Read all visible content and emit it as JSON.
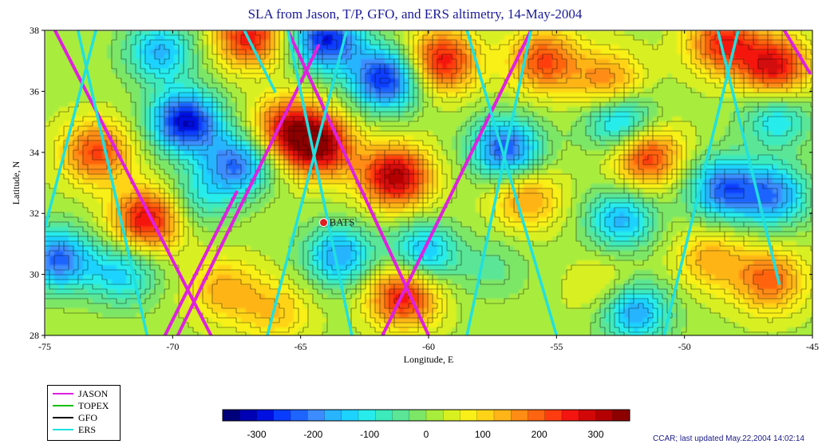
{
  "title": "SLA from Jason, T/P, GFO, and ERS altimetry, 14-May-2004",
  "map": {
    "x_axis": {
      "label": "Longitude, E",
      "ticks": [
        -75,
        -70,
        -65,
        -60,
        -55,
        -50,
        -45
      ],
      "range": [
        -75,
        -45
      ]
    },
    "y_axis": {
      "label": "Latitude, N",
      "ticks": [
        28,
        30,
        32,
        34,
        36,
        38
      ],
      "range": [
        28,
        38
      ]
    },
    "station": {
      "name": "BATS",
      "lon": -64.1,
      "lat": 31.7,
      "color": "#e02020"
    },
    "eddies": [
      {
        "lon": -73.0,
        "lat": 34.0,
        "sla": 200
      },
      {
        "lon": -71.0,
        "lat": 31.8,
        "sla": 260
      },
      {
        "lon": -74.5,
        "lat": 30.5,
        "sla": -240
      },
      {
        "lon": -72.0,
        "lat": 30.0,
        "sla": -150
      },
      {
        "lon": -69.5,
        "lat": 35.0,
        "sla": -320
      },
      {
        "lon": -67.5,
        "lat": 33.6,
        "sla": -230
      },
      {
        "lon": -69.0,
        "lat": 32.5,
        "sla": -100
      },
      {
        "lon": -67.0,
        "lat": 37.8,
        "sla": 240
      },
      {
        "lon": -70.5,
        "lat": 37.3,
        "sla": -180
      },
      {
        "lon": -65.5,
        "lat": 34.8,
        "sla": 220
      },
      {
        "lon": -64.3,
        "lat": 34.2,
        "sla": 290
      },
      {
        "lon": -64.0,
        "lat": 37.7,
        "sla": -300
      },
      {
        "lon": -61.7,
        "lat": 36.4,
        "sla": -300
      },
      {
        "lon": -59.5,
        "lat": 37.0,
        "sla": 250
      },
      {
        "lon": -61.3,
        "lat": 33.2,
        "sla": 300
      },
      {
        "lon": -63.5,
        "lat": 30.6,
        "sla": -200
      },
      {
        "lon": -60.2,
        "lat": 30.7,
        "sla": -180
      },
      {
        "lon": -61.0,
        "lat": 29.3,
        "sla": 250
      },
      {
        "lon": -55.5,
        "lat": 37.0,
        "sla": 200
      },
      {
        "lon": -57.0,
        "lat": 34.1,
        "sla": -260
      },
      {
        "lon": -56.2,
        "lat": 32.5,
        "sla": 140
      },
      {
        "lon": -57.5,
        "lat": 30.2,
        "sla": -60
      },
      {
        "lon": -53.0,
        "lat": 36.3,
        "sla": 160
      },
      {
        "lon": -52.5,
        "lat": 35.0,
        "sla": -200
      },
      {
        "lon": -51.5,
        "lat": 33.9,
        "sla": 230
      },
      {
        "lon": -52.5,
        "lat": 31.8,
        "sla": -180
      },
      {
        "lon": -53.0,
        "lat": 29.5,
        "sla": 80
      },
      {
        "lon": -52.0,
        "lat": 28.8,
        "sla": -220
      },
      {
        "lon": -48.5,
        "lat": 37.6,
        "sla": 220
      },
      {
        "lon": -46.5,
        "lat": 36.8,
        "sla": 260
      },
      {
        "lon": -48.5,
        "lat": 32.8,
        "sla": -240
      },
      {
        "lon": -46.5,
        "lat": 32.6,
        "sla": -210
      },
      {
        "lon": -46.4,
        "lat": 35.1,
        "sla": -140
      },
      {
        "lon": -46.7,
        "lat": 29.8,
        "sla": 180
      },
      {
        "lon": -49.0,
        "lat": 30.5,
        "sla": 120
      },
      {
        "lon": -68.0,
        "lat": 29.5,
        "sla": 120
      },
      {
        "lon": -66.0,
        "lat": 28.8,
        "sla": 100
      }
    ],
    "tracks": [
      {
        "type": "JASON",
        "points": [
          [
            -74.6,
            38
          ],
          [
            -68.5,
            28
          ]
        ]
      },
      {
        "type": "JASON",
        "points": [
          [
            -70.3,
            28
          ],
          [
            -67.5,
            32.7
          ]
        ]
      },
      {
        "type": "JASON",
        "points": [
          [
            -69.8,
            28
          ],
          [
            -64.3,
            37.5
          ]
        ]
      },
      {
        "type": "JASON",
        "points": [
          [
            -65.5,
            38
          ],
          [
            -60.0,
            28
          ]
        ]
      },
      {
        "type": "JASON",
        "points": [
          [
            -61.8,
            28
          ],
          [
            -56.0,
            38
          ]
        ]
      },
      {
        "type": "JASON",
        "points": [
          [
            -46.1,
            38
          ],
          [
            -45.1,
            36.6
          ]
        ]
      },
      {
        "type": "ERS",
        "points": [
          [
            -75.0,
            31.5
          ],
          [
            -73.0,
            38
          ]
        ]
      },
      {
        "type": "ERS",
        "points": [
          [
            -73.7,
            38
          ],
          [
            -71.0,
            28
          ]
        ]
      },
      {
        "type": "ERS",
        "points": [
          [
            -67.2,
            38
          ],
          [
            -66.0,
            36
          ]
        ]
      },
      {
        "type": "ERS",
        "points": [
          [
            -65.5,
            38
          ],
          [
            -63.0,
            28
          ]
        ]
      },
      {
        "type": "ERS",
        "points": [
          [
            -66.3,
            28
          ],
          [
            -63.2,
            38
          ]
        ]
      },
      {
        "type": "ERS",
        "points": [
          [
            -58.5,
            38
          ],
          [
            -55.0,
            28
          ]
        ]
      },
      {
        "type": "ERS",
        "points": [
          [
            -58.5,
            28
          ],
          [
            -56.0,
            38
          ]
        ]
      },
      {
        "type": "ERS",
        "points": [
          [
            -50.8,
            28
          ],
          [
            -47.9,
            38
          ]
        ]
      },
      {
        "type": "ERS",
        "points": [
          [
            -48.7,
            38
          ],
          [
            -46.3,
            29.7
          ]
        ]
      }
    ]
  },
  "legend": [
    {
      "label": "JASON",
      "color": "#e020e0"
    },
    {
      "label": "TOPEX",
      "color": "#10c010"
    },
    {
      "label": "GFO",
      "color": "#000000"
    },
    {
      "label": "ERS",
      "color": "#20e0e0"
    }
  ],
  "colorbar": {
    "min": -360,
    "max": 360,
    "colors": [
      "#00007a",
      "#0000b4",
      "#0010e0",
      "#0a3cff",
      "#1e64ff",
      "#3c8cff",
      "#28b4ff",
      "#1ed2ff",
      "#28ecec",
      "#3ceabc",
      "#5ae696",
      "#7ce666",
      "#a8ec3c",
      "#d8f020",
      "#f8f018",
      "#ffd418",
      "#ffb418",
      "#ff8c14",
      "#ff6410",
      "#ff3c10",
      "#f41410",
      "#d20808",
      "#b40000",
      "#8c0000"
    ],
    "ticks": [
      "-300",
      "-200",
      "-100",
      "0",
      "100",
      "200",
      "300"
    ],
    "tick_values": [
      -300,
      -200,
      -100,
      0,
      100,
      200,
      300
    ]
  },
  "credit": "CCAR; last updated May.22,2004 14:02:14"
}
